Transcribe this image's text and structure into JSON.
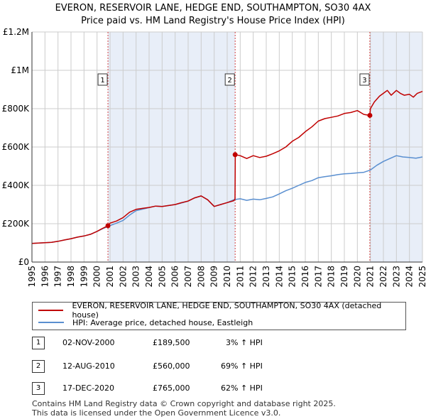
{
  "header": {
    "title_line1": "EVERON, RESERVOIR LANE, HEDGE END, SOUTHAMPTON, SO30 4AX",
    "title_line2": "Price paid vs. HM Land Registry's House Price Index (HPI)"
  },
  "colors": {
    "price": "#c00000",
    "hpi": "#5a8fd0",
    "shade": "#e8eef8",
    "grid": "#cccccc",
    "vline": "#d04040"
  },
  "chart_data": {
    "type": "line",
    "title": "Price paid vs. HM Land Registry's House Price Index (HPI)",
    "xlim": [
      1995,
      2025
    ],
    "ylim": [
      0,
      1200000
    ],
    "x_ticks": [
      "1995",
      "1996",
      "1997",
      "1998",
      "1999",
      "2000",
      "2001",
      "2002",
      "2003",
      "2004",
      "2005",
      "2006",
      "2007",
      "2008",
      "2009",
      "2010",
      "2011",
      "2012",
      "2013",
      "2014",
      "2015",
      "2016",
      "2017",
      "2018",
      "2019",
      "2020",
      "2021",
      "2022",
      "2023",
      "2024",
      "2025"
    ],
    "y_ticks": [
      {
        "value": 0,
        "label": "£0"
      },
      {
        "value": 200000,
        "label": "£200K"
      },
      {
        "value": 400000,
        "label": "£400K"
      },
      {
        "value": 600000,
        "label": "£600K"
      },
      {
        "value": 800000,
        "label": "£800K"
      },
      {
        "value": 1000000,
        "label": "£1M"
      },
      {
        "value": 1200000,
        "label": "£1.2M"
      }
    ],
    "shaded_ranges": [
      [
        2000.84,
        2010.61
      ],
      [
        2020.96,
        2025
      ]
    ],
    "series": [
      {
        "name": "EVERON, RESERVOIR LANE, HEDGE END, SOUTHAMPTON, SO30 4AX (detached house)",
        "x": [
          1995,
          1995.5,
          1996,
          1996.5,
          1997,
          1997.5,
          1998,
          1998.5,
          1999,
          1999.5,
          2000,
          2000.4,
          2000.84,
          2001,
          2001.5,
          2002,
          2002.5,
          2003,
          2003.5,
          2004,
          2004.5,
          2005,
          2005.5,
          2006,
          2006.5,
          2007,
          2007.5,
          2008,
          2008.5,
          2009,
          2009.5,
          2010,
          2010.5,
          2010.6,
          2010.62,
          2011,
          2011.5,
          2012,
          2012.5,
          2013,
          2013.5,
          2014,
          2014.5,
          2015,
          2015.5,
          2016,
          2016.5,
          2017,
          2017.5,
          2018,
          2018.5,
          2019,
          2019.5,
          2020,
          2020.5,
          2020.96,
          2021,
          2021.3,
          2021.7,
          2022,
          2022.3,
          2022.6,
          2023,
          2023.3,
          2023.6,
          2024,
          2024.3,
          2024.6,
          2025
        ],
        "y": [
          97000,
          99000,
          101000,
          103000,
          108000,
          115000,
          122000,
          130000,
          136000,
          145000,
          160000,
          175000,
          189500,
          203000,
          214000,
          232000,
          260000,
          275000,
          280000,
          285000,
          292000,
          290000,
          295000,
          300000,
          310000,
          318000,
          335000,
          345000,
          325000,
          290000,
          300000,
          310000,
          320000,
          328000,
          560000,
          555000,
          540000,
          555000,
          545000,
          552000,
          565000,
          580000,
          600000,
          630000,
          650000,
          680000,
          705000,
          735000,
          748000,
          755000,
          762000,
          775000,
          780000,
          790000,
          770000,
          765000,
          800000,
          835000,
          865000,
          880000,
          895000,
          870000,
          895000,
          880000,
          870000,
          875000,
          860000,
          880000,
          890000
        ]
      },
      {
        "name": "HPI: Average price, detached house, Eastleigh",
        "x": [
          1995,
          1995.5,
          1996,
          1996.5,
          1997,
          1997.5,
          1998,
          1998.5,
          1999,
          1999.5,
          2000,
          2000.5,
          2001,
          2001.5,
          2002,
          2002.5,
          2003,
          2003.5,
          2004,
          2004.5,
          2005,
          2005.5,
          2006,
          2006.5,
          2007,
          2007.5,
          2008,
          2008.5,
          2009,
          2009.5,
          2010,
          2010.5,
          2011,
          2011.5,
          2012,
          2012.5,
          2013,
          2013.5,
          2014,
          2014.5,
          2015,
          2015.5,
          2016,
          2016.5,
          2017,
          2017.5,
          2018,
          2018.5,
          2019,
          2019.5,
          2020,
          2020.5,
          2021,
          2021.5,
          2022,
          2022.5,
          2023,
          2023.5,
          2024,
          2024.5,
          2025
        ],
        "y": [
          97000,
          99000,
          101000,
          103000,
          108000,
          115000,
          122000,
          130000,
          136000,
          145000,
          160000,
          176000,
          190000,
          203000,
          217000,
          245000,
          268000,
          276000,
          284000,
          292000,
          290000,
          295000,
          300000,
          308000,
          318000,
          335000,
          345000,
          325000,
          290000,
          300000,
          310000,
          325000,
          330000,
          322000,
          328000,
          325000,
          332000,
          340000,
          355000,
          372000,
          385000,
          400000,
          415000,
          425000,
          440000,
          445000,
          450000,
          456000,
          460000,
          462000,
          465000,
          468000,
          480000,
          505000,
          525000,
          540000,
          555000,
          548000,
          545000,
          542000,
          548000
        ]
      }
    ],
    "markers": [
      {
        "id": "1",
        "x": 2000.84,
        "y": 189500,
        "box_label": "1"
      },
      {
        "id": "2",
        "x": 2010.61,
        "y": 560000,
        "box_label": "2"
      },
      {
        "id": "3",
        "x": 2020.96,
        "y": 765000,
        "box_label": "3"
      }
    ]
  },
  "legend": {
    "price_label": "EVERON, RESERVOIR LANE, HEDGE END, SOUTHAMPTON, SO30 4AX (detached house)",
    "hpi_label": "HPI: Average price, detached house, Eastleigh"
  },
  "transactions": [
    {
      "num": "1",
      "date": "02-NOV-2000",
      "price": "£189,500",
      "hpi": "3% ↑ HPI"
    },
    {
      "num": "2",
      "date": "12-AUG-2010",
      "price": "£560,000",
      "hpi": "69% ↑ HPI"
    },
    {
      "num": "3",
      "date": "17-DEC-2020",
      "price": "£765,000",
      "hpi": "62% ↑ HPI"
    }
  ],
  "footer": {
    "line1": "Contains HM Land Registry data © Crown copyright and database right 2025.",
    "line2": "This data is licensed under the Open Government Licence v3.0."
  }
}
